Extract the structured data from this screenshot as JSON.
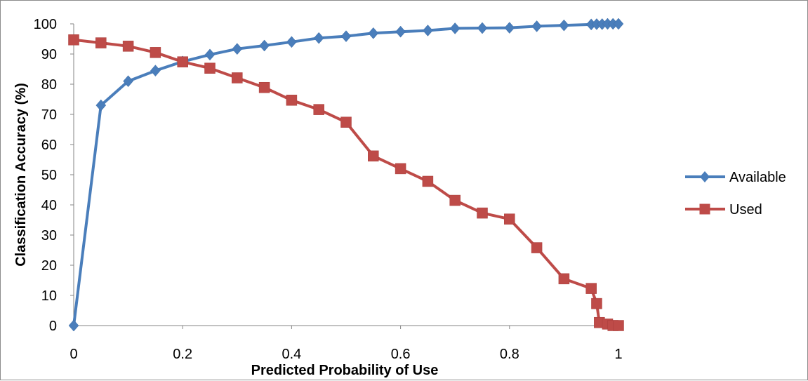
{
  "chart_data": {
    "type": "line",
    "xlabel": "Predicted Probability of Use",
    "ylabel": "Classification Accuracy (%)",
    "xlim": [
      0,
      1
    ],
    "ylim": [
      0,
      100
    ],
    "x_ticks": [
      "0",
      "0.2",
      "0.4",
      "0.6",
      "0.8",
      "1"
    ],
    "y_ticks": [
      "0",
      "10",
      "20",
      "30",
      "40",
      "50",
      "60",
      "70",
      "80",
      "90",
      "100"
    ],
    "grid": false,
    "legend_position": "right",
    "series": [
      {
        "name": "Available",
        "color": "#4a7ebb",
        "marker": "diamond",
        "points": [
          [
            0,
            0
          ],
          [
            0.05,
            73
          ],
          [
            0.1,
            81
          ],
          [
            0.15,
            84.5
          ],
          [
            0.2,
            87.5
          ],
          [
            0.25,
            89.8
          ],
          [
            0.3,
            91.7
          ],
          [
            0.35,
            92.8
          ],
          [
            0.4,
            94
          ],
          [
            0.45,
            95.3
          ],
          [
            0.5,
            95.9
          ],
          [
            0.55,
            96.9
          ],
          [
            0.6,
            97.4
          ],
          [
            0.65,
            97.8
          ],
          [
            0.7,
            98.5
          ],
          [
            0.75,
            98.6
          ],
          [
            0.8,
            98.7
          ],
          [
            0.85,
            99.2
          ],
          [
            0.9,
            99.5
          ],
          [
            0.95,
            99.8
          ],
          [
            0.96,
            99.9
          ],
          [
            0.97,
            99.9
          ],
          [
            0.98,
            100
          ],
          [
            0.99,
            100
          ],
          [
            1,
            100
          ]
        ]
      },
      {
        "name": "Used",
        "color": "#be4b48",
        "marker": "square",
        "points": [
          [
            0,
            94.7
          ],
          [
            0.05,
            93.7
          ],
          [
            0.1,
            92.6
          ],
          [
            0.15,
            90.5
          ],
          [
            0.2,
            87.4
          ],
          [
            0.25,
            85.3
          ],
          [
            0.3,
            82.1
          ],
          [
            0.35,
            78.9
          ],
          [
            0.4,
            74.7
          ],
          [
            0.45,
            71.6
          ],
          [
            0.5,
            67.4
          ],
          [
            0.55,
            56.2
          ],
          [
            0.6,
            52
          ],
          [
            0.65,
            47.8
          ],
          [
            0.7,
            41.5
          ],
          [
            0.75,
            37.3
          ],
          [
            0.8,
            35.3
          ],
          [
            0.85,
            25.8
          ],
          [
            0.9,
            15.5
          ],
          [
            0.95,
            12.3
          ],
          [
            0.96,
            7.3
          ],
          [
            0.965,
            1
          ],
          [
            0.98,
            0.5
          ],
          [
            0.99,
            0
          ],
          [
            1,
            0
          ]
        ]
      }
    ]
  }
}
